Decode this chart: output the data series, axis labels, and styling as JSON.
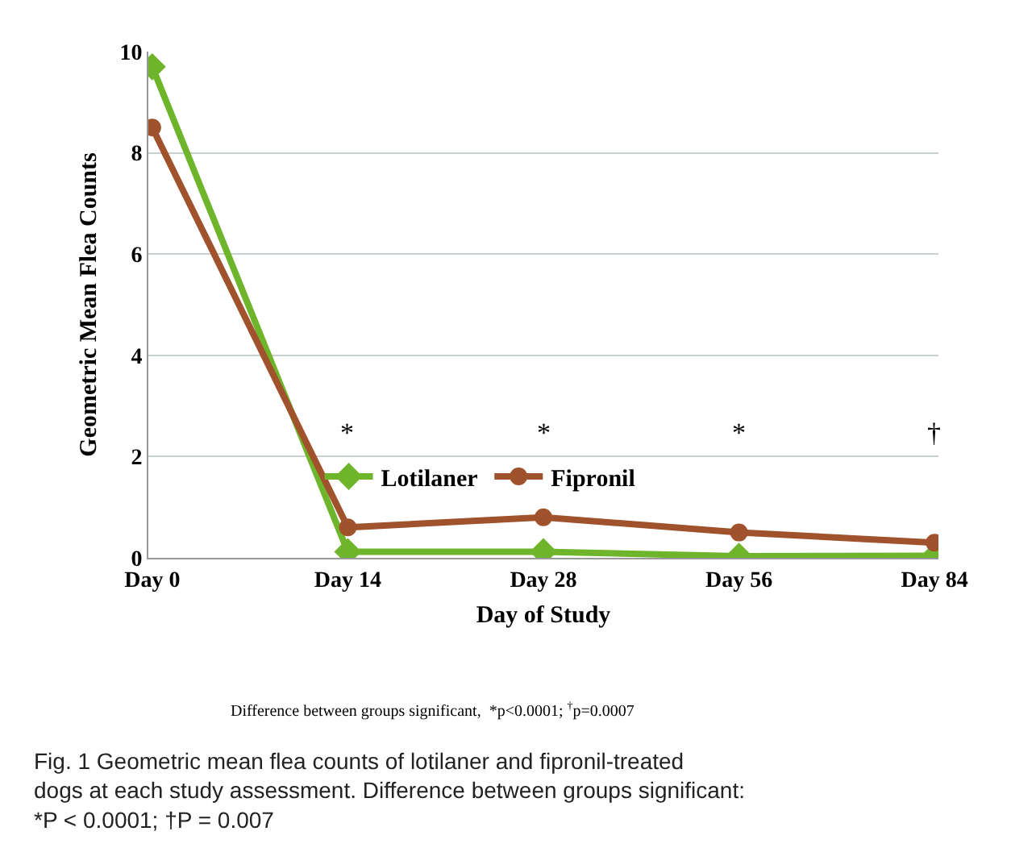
{
  "chart_data": {
    "type": "line",
    "xlabel": "Day of Study",
    "ylabel": "Geometric Mean Flea Counts",
    "categories": [
      "Day 0",
      "Day 14",
      "Day 28",
      "Day 56",
      "Day 84"
    ],
    "series": [
      {
        "name": "Lotilaner",
        "color": "#6fb52c",
        "marker": "diamond",
        "values": [
          9.7,
          0.12,
          0.12,
          0.03,
          0.04
        ]
      },
      {
        "name": "Fipronil",
        "color": "#a0522d",
        "marker": "circle",
        "values": [
          8.5,
          0.6,
          0.8,
          0.5,
          0.3
        ]
      }
    ],
    "ylim": [
      0,
      10
    ],
    "yticks": [
      0,
      2,
      4,
      6,
      8,
      10
    ],
    "grid": "y",
    "legend": "bottom",
    "line_style": "solid",
    "annotations": [
      "*",
      "*",
      "*",
      "†",
      "Difference between groups significant,  *p<0.0001; $^{†}$p=0.0007",
      "Fig. 1 Geometric mean flea counts of lotilaner and fipronil-treated dogs at each study assessment. Difference between groups significant: *P < 0.0001; †P = 0.007"
    ]
  }
}
